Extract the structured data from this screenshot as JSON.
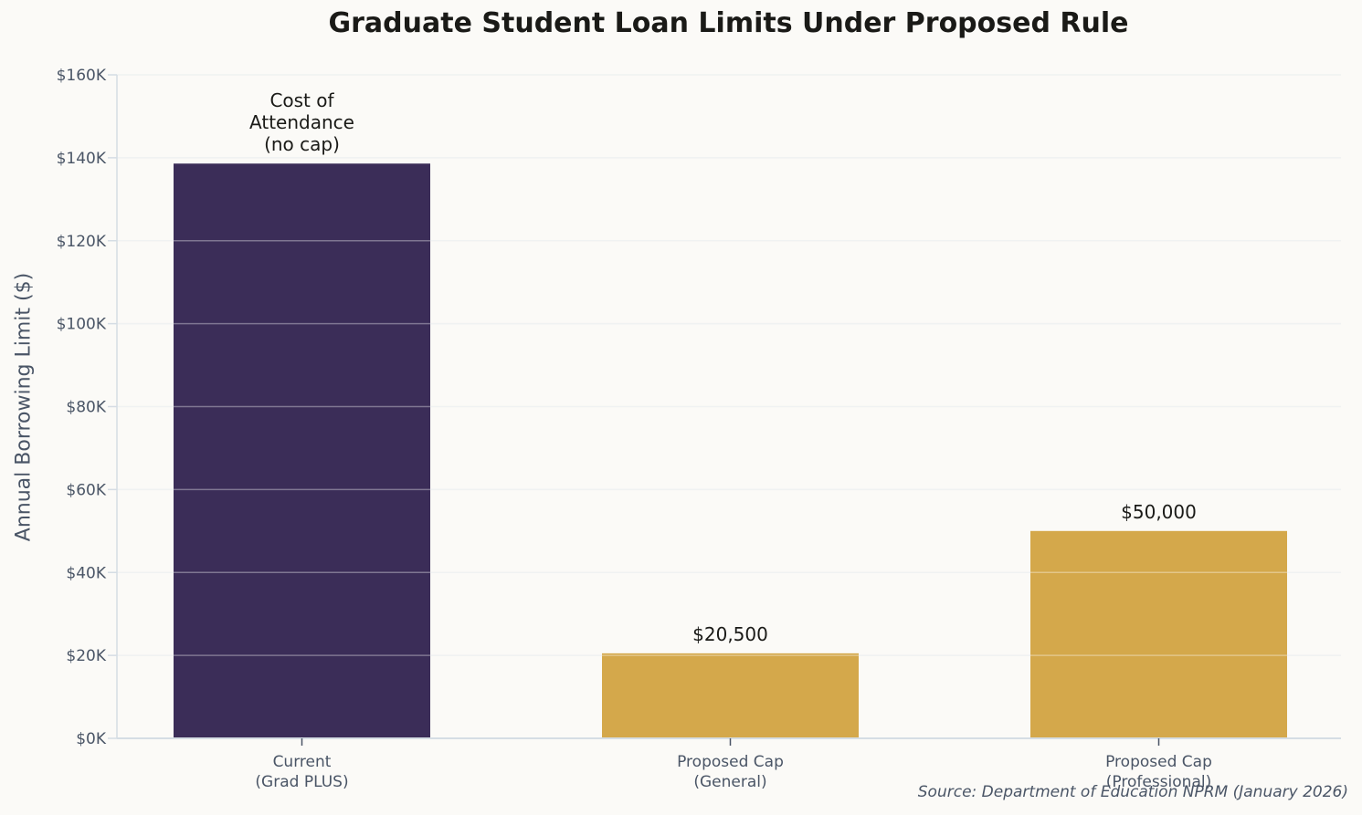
{
  "chart_data": {
    "type": "bar",
    "title": "Graduate Student Loan Limits Under Proposed Rule",
    "xlabel": "",
    "ylabel": "Annual Borrowing Limit ($)",
    "ylim": [
      0,
      160000
    ],
    "yticks": [
      0,
      20000,
      40000,
      60000,
      80000,
      100000,
      120000,
      140000,
      160000
    ],
    "ytick_labels": [
      "$0K",
      "$20K",
      "$40K",
      "$60K",
      "$80K",
      "$100K",
      "$120K",
      "$140K",
      "$160K"
    ],
    "categories": [
      "Current\n(Grad PLUS)",
      "Proposed Cap\n(General)",
      "Proposed Cap\n(Professional)"
    ],
    "category_lines": [
      [
        "Current",
        "(Grad PLUS)"
      ],
      [
        "Proposed Cap",
        "(General)"
      ],
      [
        "Proposed Cap",
        "(Professional)"
      ]
    ],
    "values": [
      138600,
      20500,
      50000
    ],
    "bar_labels": [
      [
        "Cost of",
        "Attendance",
        "(no cap)"
      ],
      [
        "$20,500"
      ],
      [
        "$50,000"
      ]
    ],
    "colors": [
      "#3b2d58",
      "#d4a84b",
      "#d4a84b"
    ],
    "grid": true,
    "legend": null,
    "annotations": [
      "Source: Department of Education NPRM (January 2026)"
    ]
  },
  "source_note": "Source: Department of Education NPRM (January 2026)",
  "style": {
    "background": "#fbfaf7",
    "grid_color": "#e9ebec",
    "axis_color": "#d5dde4",
    "tick_text_color": "#4a5566",
    "label_text_color": "#1a1a17"
  }
}
